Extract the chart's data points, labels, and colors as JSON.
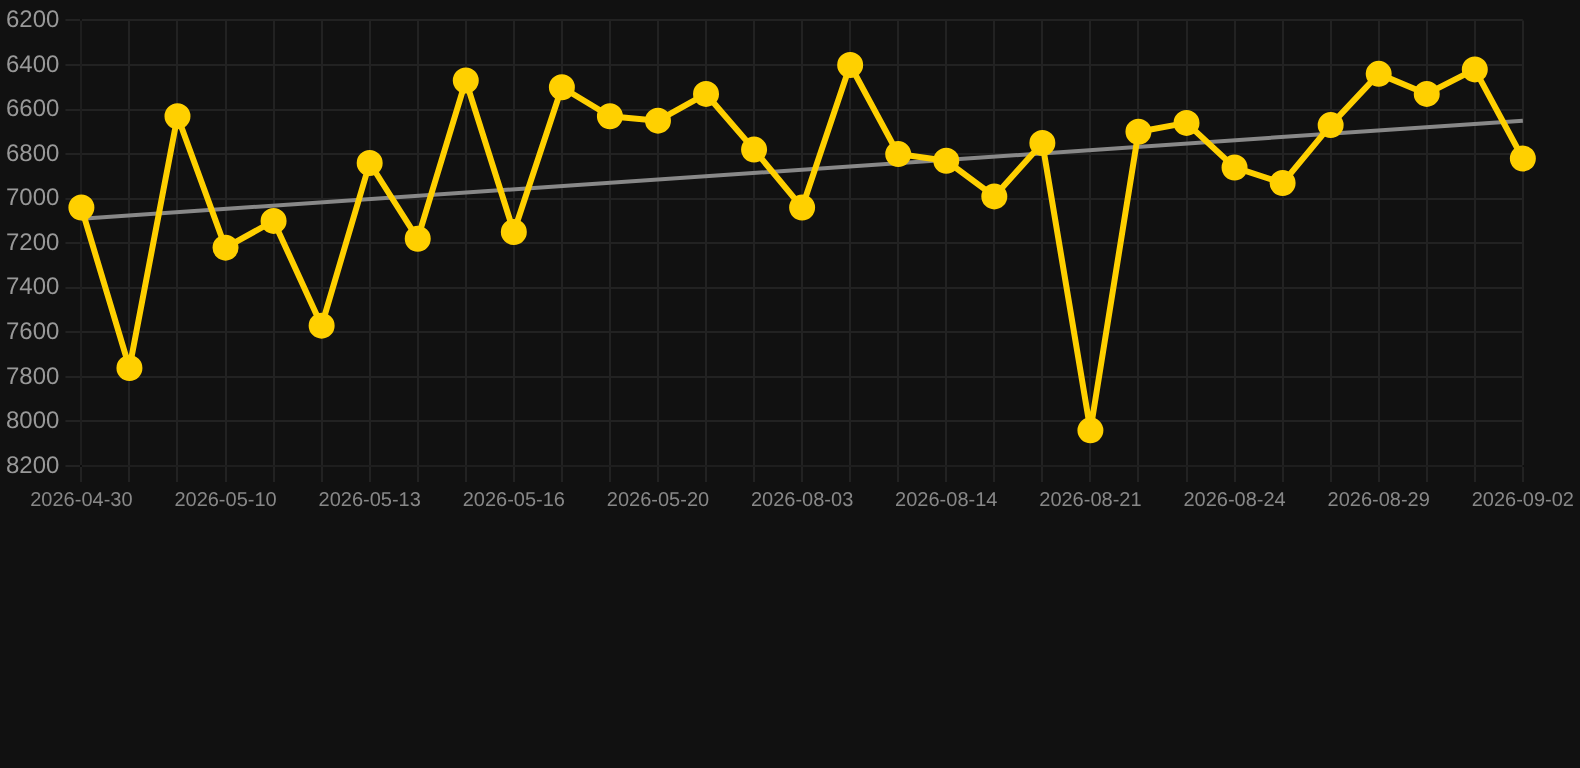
{
  "chart_data": {
    "type": "line",
    "categories": [
      "2026-04-30",
      null,
      null,
      "2026-05-10",
      null,
      null,
      "2026-05-13",
      null,
      null,
      "2026-05-16",
      null,
      null,
      "2026-05-20",
      null,
      null,
      "2026-08-03",
      null,
      null,
      "2026-08-14",
      null,
      null,
      "2026-08-21",
      null,
      null,
      "2026-08-24",
      null,
      null,
      "2026-08-29",
      null,
      null,
      "2026-09-02"
    ],
    "series": [
      {
        "color": "#ffd000",
        "marker": "circle",
        "values": [
          7040,
          7760,
          6630,
          7220,
          7100,
          7570,
          6840,
          7180,
          6470,
          7150,
          6500,
          6630,
          6650,
          6530,
          6780,
          7040,
          6400,
          6800,
          6830,
          6990,
          6750,
          8040,
          6700,
          6660,
          6860,
          6930,
          6670,
          6440,
          6530,
          6420,
          6820
        ]
      },
      {
        "type": "line",
        "color": "#888888",
        "marker": "none",
        "values": [
          7090,
          null,
          null,
          null,
          null,
          null,
          null,
          null,
          null,
          null,
          null,
          null,
          null,
          null,
          null,
          null,
          null,
          null,
          null,
          null,
          null,
          null,
          null,
          null,
          null,
          null,
          null,
          null,
          null,
          null,
          6650
        ]
      }
    ],
    "ylim": [
      8200,
      6200
    ],
    "yticks": [
      6200,
      6400,
      6600,
      6800,
      7000,
      7200,
      7400,
      7600,
      7800,
      8000,
      8200
    ],
    "grid": true,
    "legend": false
  }
}
